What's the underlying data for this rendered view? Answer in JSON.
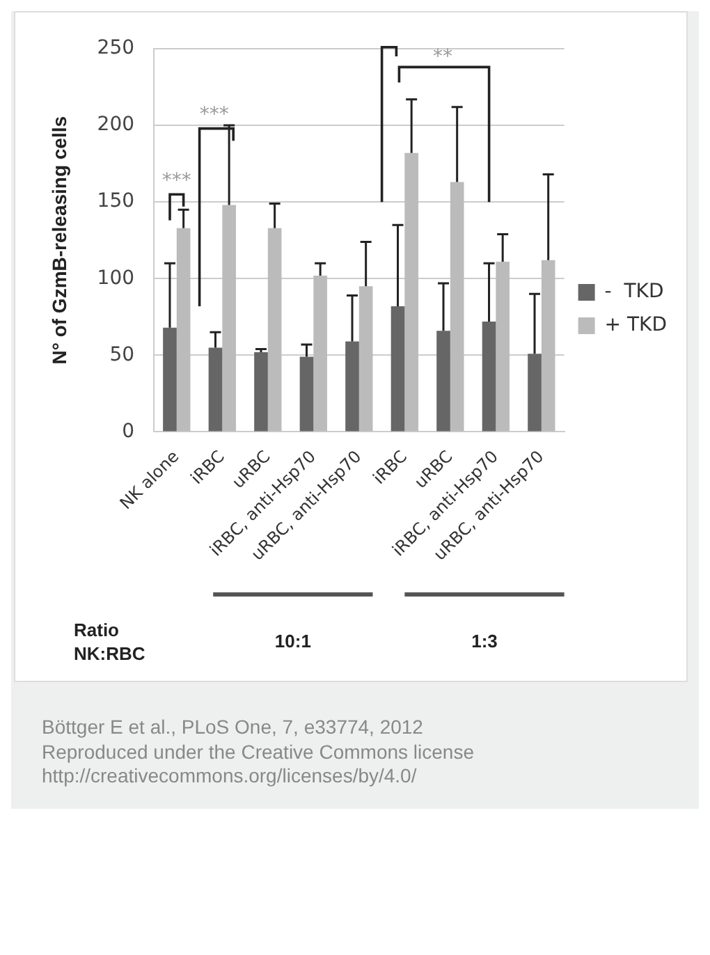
{
  "chart_data": {
    "type": "bar",
    "ylabel": "N° of GzmB-releasing cells",
    "categories": [
      "NK alone",
      "iRBC",
      "uRBC",
      "iRBC, anti-Hsp70",
      "uRBC, anti-Hsp70",
      "iRBC",
      "uRBC",
      "iRBC, anti-Hsp70",
      "uRBC, anti-Hsp70"
    ],
    "series": [
      {
        "name": "-  TKD",
        "color": "#666666",
        "values": [
          68,
          55,
          52,
          49,
          59,
          82,
          66,
          72,
          51
        ],
        "errors": [
          [
            68,
            110
          ],
          [
            55,
            65
          ],
          [
            52,
            54
          ],
          [
            49,
            57
          ],
          [
            59,
            89
          ],
          [
            82,
            135
          ],
          [
            66,
            97
          ],
          [
            72,
            110
          ],
          [
            51,
            90
          ]
        ]
      },
      {
        "name": "+ TKD",
        "color": "#bbbbbb",
        "values": [
          133,
          148,
          133,
          102,
          95,
          182,
          163,
          111,
          112
        ],
        "errors": [
          [
            133,
            145
          ],
          [
            148,
            200
          ],
          [
            133,
            149
          ],
          [
            102,
            110
          ],
          [
            95,
            124
          ],
          [
            182,
            217
          ],
          [
            163,
            212
          ],
          [
            111,
            129
          ],
          [
            112,
            168
          ]
        ]
      }
    ],
    "ylim": [
      0,
      250
    ],
    "yticks": [
      0,
      50,
      100,
      150,
      200,
      250
    ],
    "grid": "y",
    "legend": "right",
    "annotations": [
      "***",
      "***",
      "**",
      "Ratio\nNK:RBC",
      "10:1",
      "1:3",
      "Böttger E et al., PLoS One, 7, e33774, 2012\nReproduced under the Creative Commons license\nhttp://creativecommons.org/licenses/by/4.0/"
    ]
  }
}
